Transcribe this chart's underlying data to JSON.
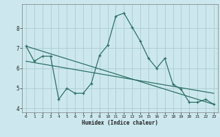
{
  "title": "",
  "xlabel": "Humidex (Indice chaleur)",
  "ylabel": "",
  "bg_color": "#cce8ee",
  "grid_color": "#aacccc",
  "line_color": "#2a6e62",
  "xlim": [
    -0.5,
    23.5
  ],
  "ylim": [
    3.8,
    9.2
  ],
  "yticks": [
    4,
    5,
    6,
    7,
    8
  ],
  "xticks": [
    0,
    1,
    2,
    3,
    4,
    5,
    6,
    7,
    8,
    9,
    10,
    11,
    12,
    13,
    14,
    15,
    16,
    17,
    18,
    19,
    20,
    21,
    22,
    23
  ],
  "series1_x": [
    0,
    1,
    2,
    3,
    4,
    5,
    6,
    7,
    8,
    9,
    10,
    11,
    12,
    13,
    14,
    15,
    16,
    17,
    18,
    19,
    20,
    21,
    22,
    23
  ],
  "series1_y": [
    7.1,
    6.35,
    6.6,
    6.6,
    4.45,
    5.0,
    4.75,
    4.75,
    5.25,
    6.65,
    7.15,
    8.6,
    8.75,
    8.05,
    7.35,
    6.5,
    6.0,
    6.5,
    5.2,
    4.95,
    4.3,
    4.3,
    4.45,
    4.2
  ],
  "series2_x": [
    0,
    23
  ],
  "series2_y": [
    7.1,
    4.2
  ],
  "series3_x": [
    0,
    23
  ],
  "series3_y": [
    6.35,
    4.75
  ]
}
